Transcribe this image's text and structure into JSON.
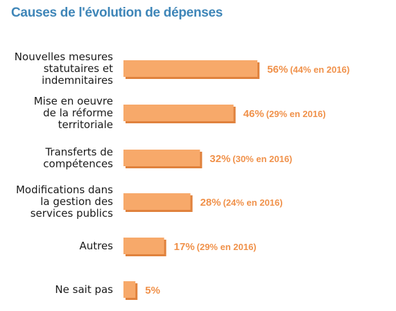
{
  "chart_data": {
    "type": "bar",
    "orientation": "horizontal",
    "title": "Causes de l'évolution de dépenses",
    "categories": [
      [
        "Nouvelles mesures",
        "statutaires et",
        "indemnitaires"
      ],
      [
        "Mise en oeuvre",
        "de la réforme",
        "territoriale"
      ],
      [
        "Transferts de",
        "compétences"
      ],
      [
        "Modifications dans",
        "la gestion des",
        "services publics"
      ],
      [
        "Autres"
      ],
      [
        "Ne sait pas"
      ]
    ],
    "values": [
      56,
      46,
      32,
      28,
      17,
      5
    ],
    "value_labels": [
      "56%",
      "46%",
      "32%",
      "28%",
      "17%",
      "5%"
    ],
    "comparison_labels": [
      "(44% en 2016)",
      "(29% en 2016)",
      "(30% en 2016)",
      "(24% en 2016)",
      "(29% en 2016)",
      ""
    ],
    "xlim": [
      0,
      100
    ],
    "grid": false,
    "colors": {
      "bar": "#f7a96a",
      "bar_shadow": "#e0823d",
      "value_text": "#f0914a",
      "title": "#3f86b8"
    }
  }
}
